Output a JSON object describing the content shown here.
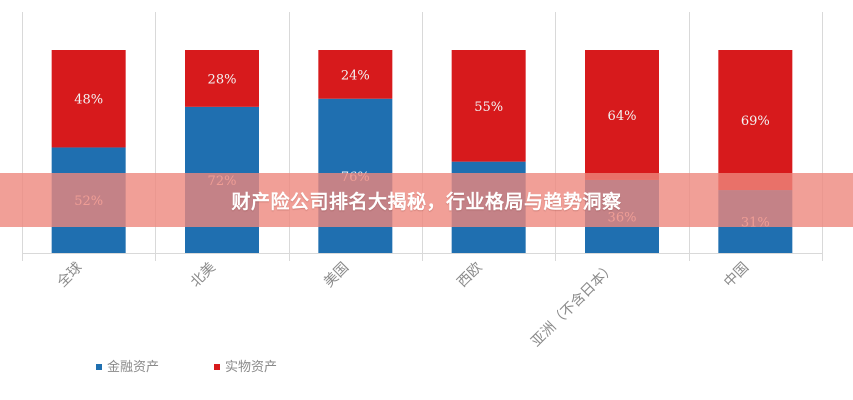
{
  "banner": {
    "title": "财产险公司排名大揭秘，行业格局与趋势洞察"
  },
  "chart_data": {
    "type": "bar",
    "stacked": true,
    "categories": [
      "全球",
      "北美",
      "美国",
      "西欧",
      "亚洲（不含日本）",
      "中国"
    ],
    "series": [
      {
        "name": "金融资产",
        "values": [
          52,
          72,
          76,
          45,
          36,
          31
        ],
        "labels": [
          "52%",
          "72%",
          "76%",
          "",
          "36%",
          "31%"
        ],
        "color": "#1f6fb0"
      },
      {
        "name": "实物资产",
        "values": [
          48,
          28,
          24,
          55,
          64,
          69
        ],
        "labels": [
          "48%",
          "28%",
          "24%",
          "55%",
          "64%",
          "69%"
        ],
        "color": "#d71a1c"
      }
    ],
    "ylim": [
      0,
      100
    ],
    "grid": "vertical",
    "legend": "bottom-left"
  },
  "colors": {
    "gridline": "#d9d9d9",
    "axis_text": "#8a8a8a"
  }
}
